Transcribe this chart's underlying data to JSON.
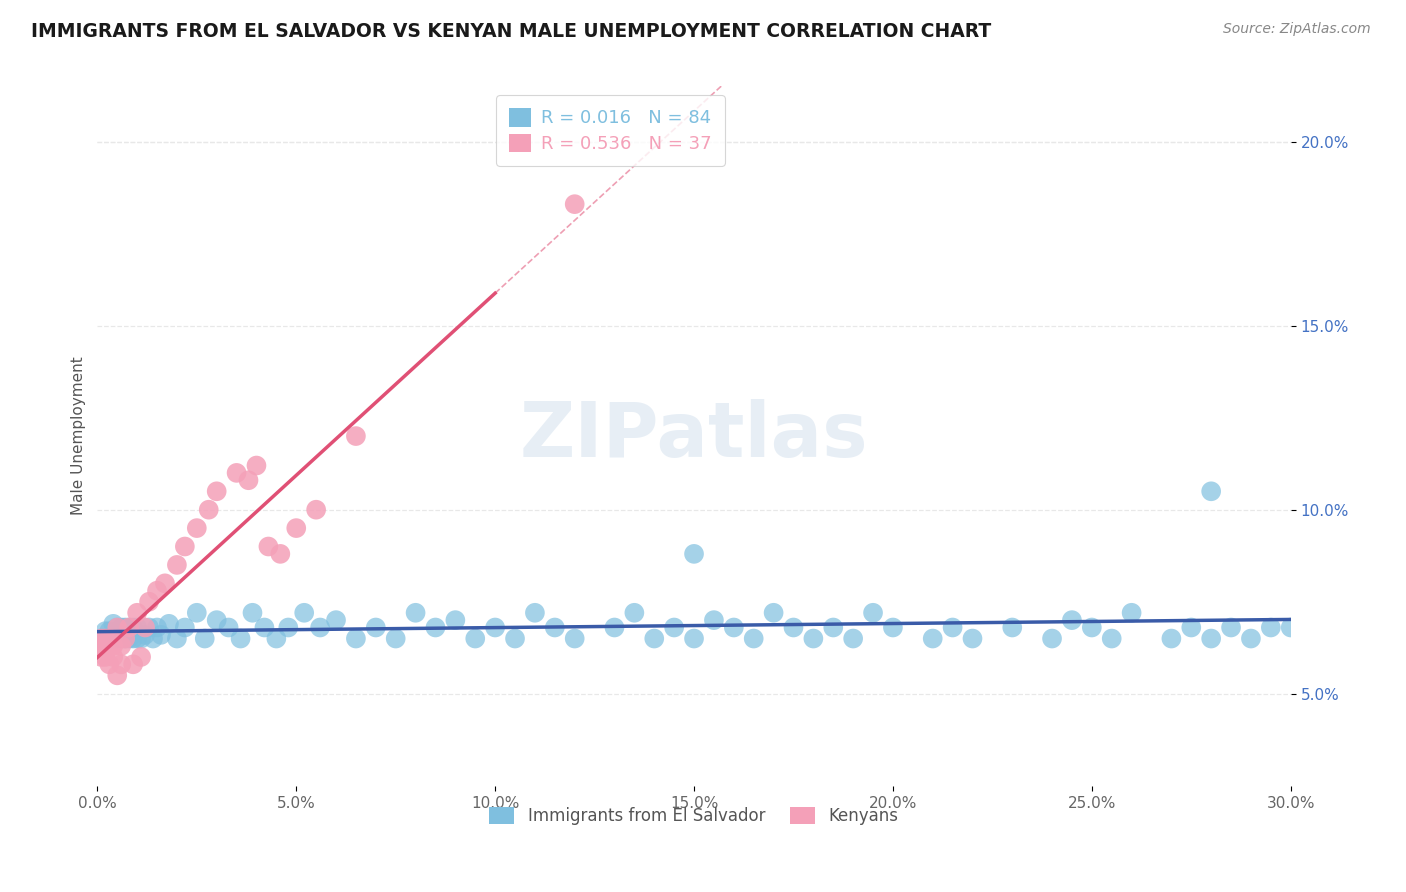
{
  "title": "IMMIGRANTS FROM EL SALVADOR VS KENYAN MALE UNEMPLOYMENT CORRELATION CHART",
  "source": "Source: ZipAtlas.com",
  "ylabel": "Male Unemployment",
  "series1_label": "Immigrants from El Salvador",
  "series2_label": "Kenyans",
  "series1_color": "#7fbfdf",
  "series2_color": "#f4a0b8",
  "series1_R": 0.016,
  "series1_N": 84,
  "series2_R": 0.536,
  "series2_N": 37,
  "xlim": [
    0.0,
    0.3
  ],
  "ylim": [
    0.025,
    0.215
  ],
  "x_ticks": [
    0.0,
    0.05,
    0.1,
    0.15,
    0.2,
    0.25,
    0.3
  ],
  "y_ticks": [
    0.05,
    0.1,
    0.15,
    0.2
  ],
  "y_tick_labels": [
    "5.0%",
    "10.0%",
    "15.0%",
    "20.0%"
  ],
  "background_color": "#ffffff",
  "grid_color": "#e8e8e8",
  "trendline1_color": "#3a5ba8",
  "trendline2_color": "#e05075",
  "watermark": "ZIPatlas",
  "series1_x": [
    0.001,
    0.002,
    0.003,
    0.003,
    0.004,
    0.004,
    0.005,
    0.005,
    0.006,
    0.006,
    0.007,
    0.007,
    0.008,
    0.008,
    0.009,
    0.009,
    0.01,
    0.01,
    0.011,
    0.012,
    0.013,
    0.014,
    0.015,
    0.016,
    0.018,
    0.02,
    0.022,
    0.025,
    0.027,
    0.03,
    0.033,
    0.036,
    0.039,
    0.042,
    0.045,
    0.048,
    0.052,
    0.056,
    0.06,
    0.065,
    0.07,
    0.075,
    0.08,
    0.085,
    0.09,
    0.095,
    0.1,
    0.105,
    0.11,
    0.115,
    0.12,
    0.13,
    0.135,
    0.14,
    0.145,
    0.15,
    0.155,
    0.16,
    0.165,
    0.17,
    0.175,
    0.18,
    0.185,
    0.19,
    0.195,
    0.2,
    0.21,
    0.215,
    0.22,
    0.23,
    0.24,
    0.245,
    0.25,
    0.255,
    0.26,
    0.27,
    0.275,
    0.28,
    0.285,
    0.29,
    0.295,
    0.3,
    0.15,
    0.28
  ],
  "series1_y": [
    0.065,
    0.067,
    0.065,
    0.067,
    0.065,
    0.069,
    0.065,
    0.068,
    0.065,
    0.068,
    0.065,
    0.068,
    0.065,
    0.068,
    0.065,
    0.068,
    0.065,
    0.068,
    0.065,
    0.066,
    0.068,
    0.065,
    0.068,
    0.066,
    0.069,
    0.065,
    0.068,
    0.072,
    0.065,
    0.07,
    0.068,
    0.065,
    0.072,
    0.068,
    0.065,
    0.068,
    0.072,
    0.068,
    0.07,
    0.065,
    0.068,
    0.065,
    0.072,
    0.068,
    0.07,
    0.065,
    0.068,
    0.065,
    0.072,
    0.068,
    0.065,
    0.068,
    0.072,
    0.065,
    0.068,
    0.065,
    0.07,
    0.068,
    0.065,
    0.072,
    0.068,
    0.065,
    0.068,
    0.065,
    0.072,
    0.068,
    0.065,
    0.068,
    0.065,
    0.068,
    0.065,
    0.07,
    0.068,
    0.065,
    0.072,
    0.065,
    0.068,
    0.065,
    0.068,
    0.065,
    0.068,
    0.068,
    0.088,
    0.105
  ],
  "series2_x": [
    0.001,
    0.001,
    0.001,
    0.002,
    0.002,
    0.002,
    0.003,
    0.003,
    0.004,
    0.004,
    0.005,
    0.005,
    0.006,
    0.006,
    0.007,
    0.008,
    0.009,
    0.01,
    0.011,
    0.012,
    0.013,
    0.015,
    0.017,
    0.02,
    0.022,
    0.025,
    0.028,
    0.03,
    0.035,
    0.038,
    0.04,
    0.043,
    0.046,
    0.05,
    0.055,
    0.065,
    0.12
  ],
  "series2_y": [
    0.065,
    0.063,
    0.06,
    0.065,
    0.063,
    0.06,
    0.065,
    0.058,
    0.063,
    0.06,
    0.068,
    0.055,
    0.063,
    0.058,
    0.065,
    0.068,
    0.058,
    0.072,
    0.06,
    0.068,
    0.075,
    0.078,
    0.08,
    0.085,
    0.09,
    0.095,
    0.1,
    0.105,
    0.11,
    0.108,
    0.112,
    0.09,
    0.088,
    0.095,
    0.1,
    0.12,
    0.183
  ]
}
